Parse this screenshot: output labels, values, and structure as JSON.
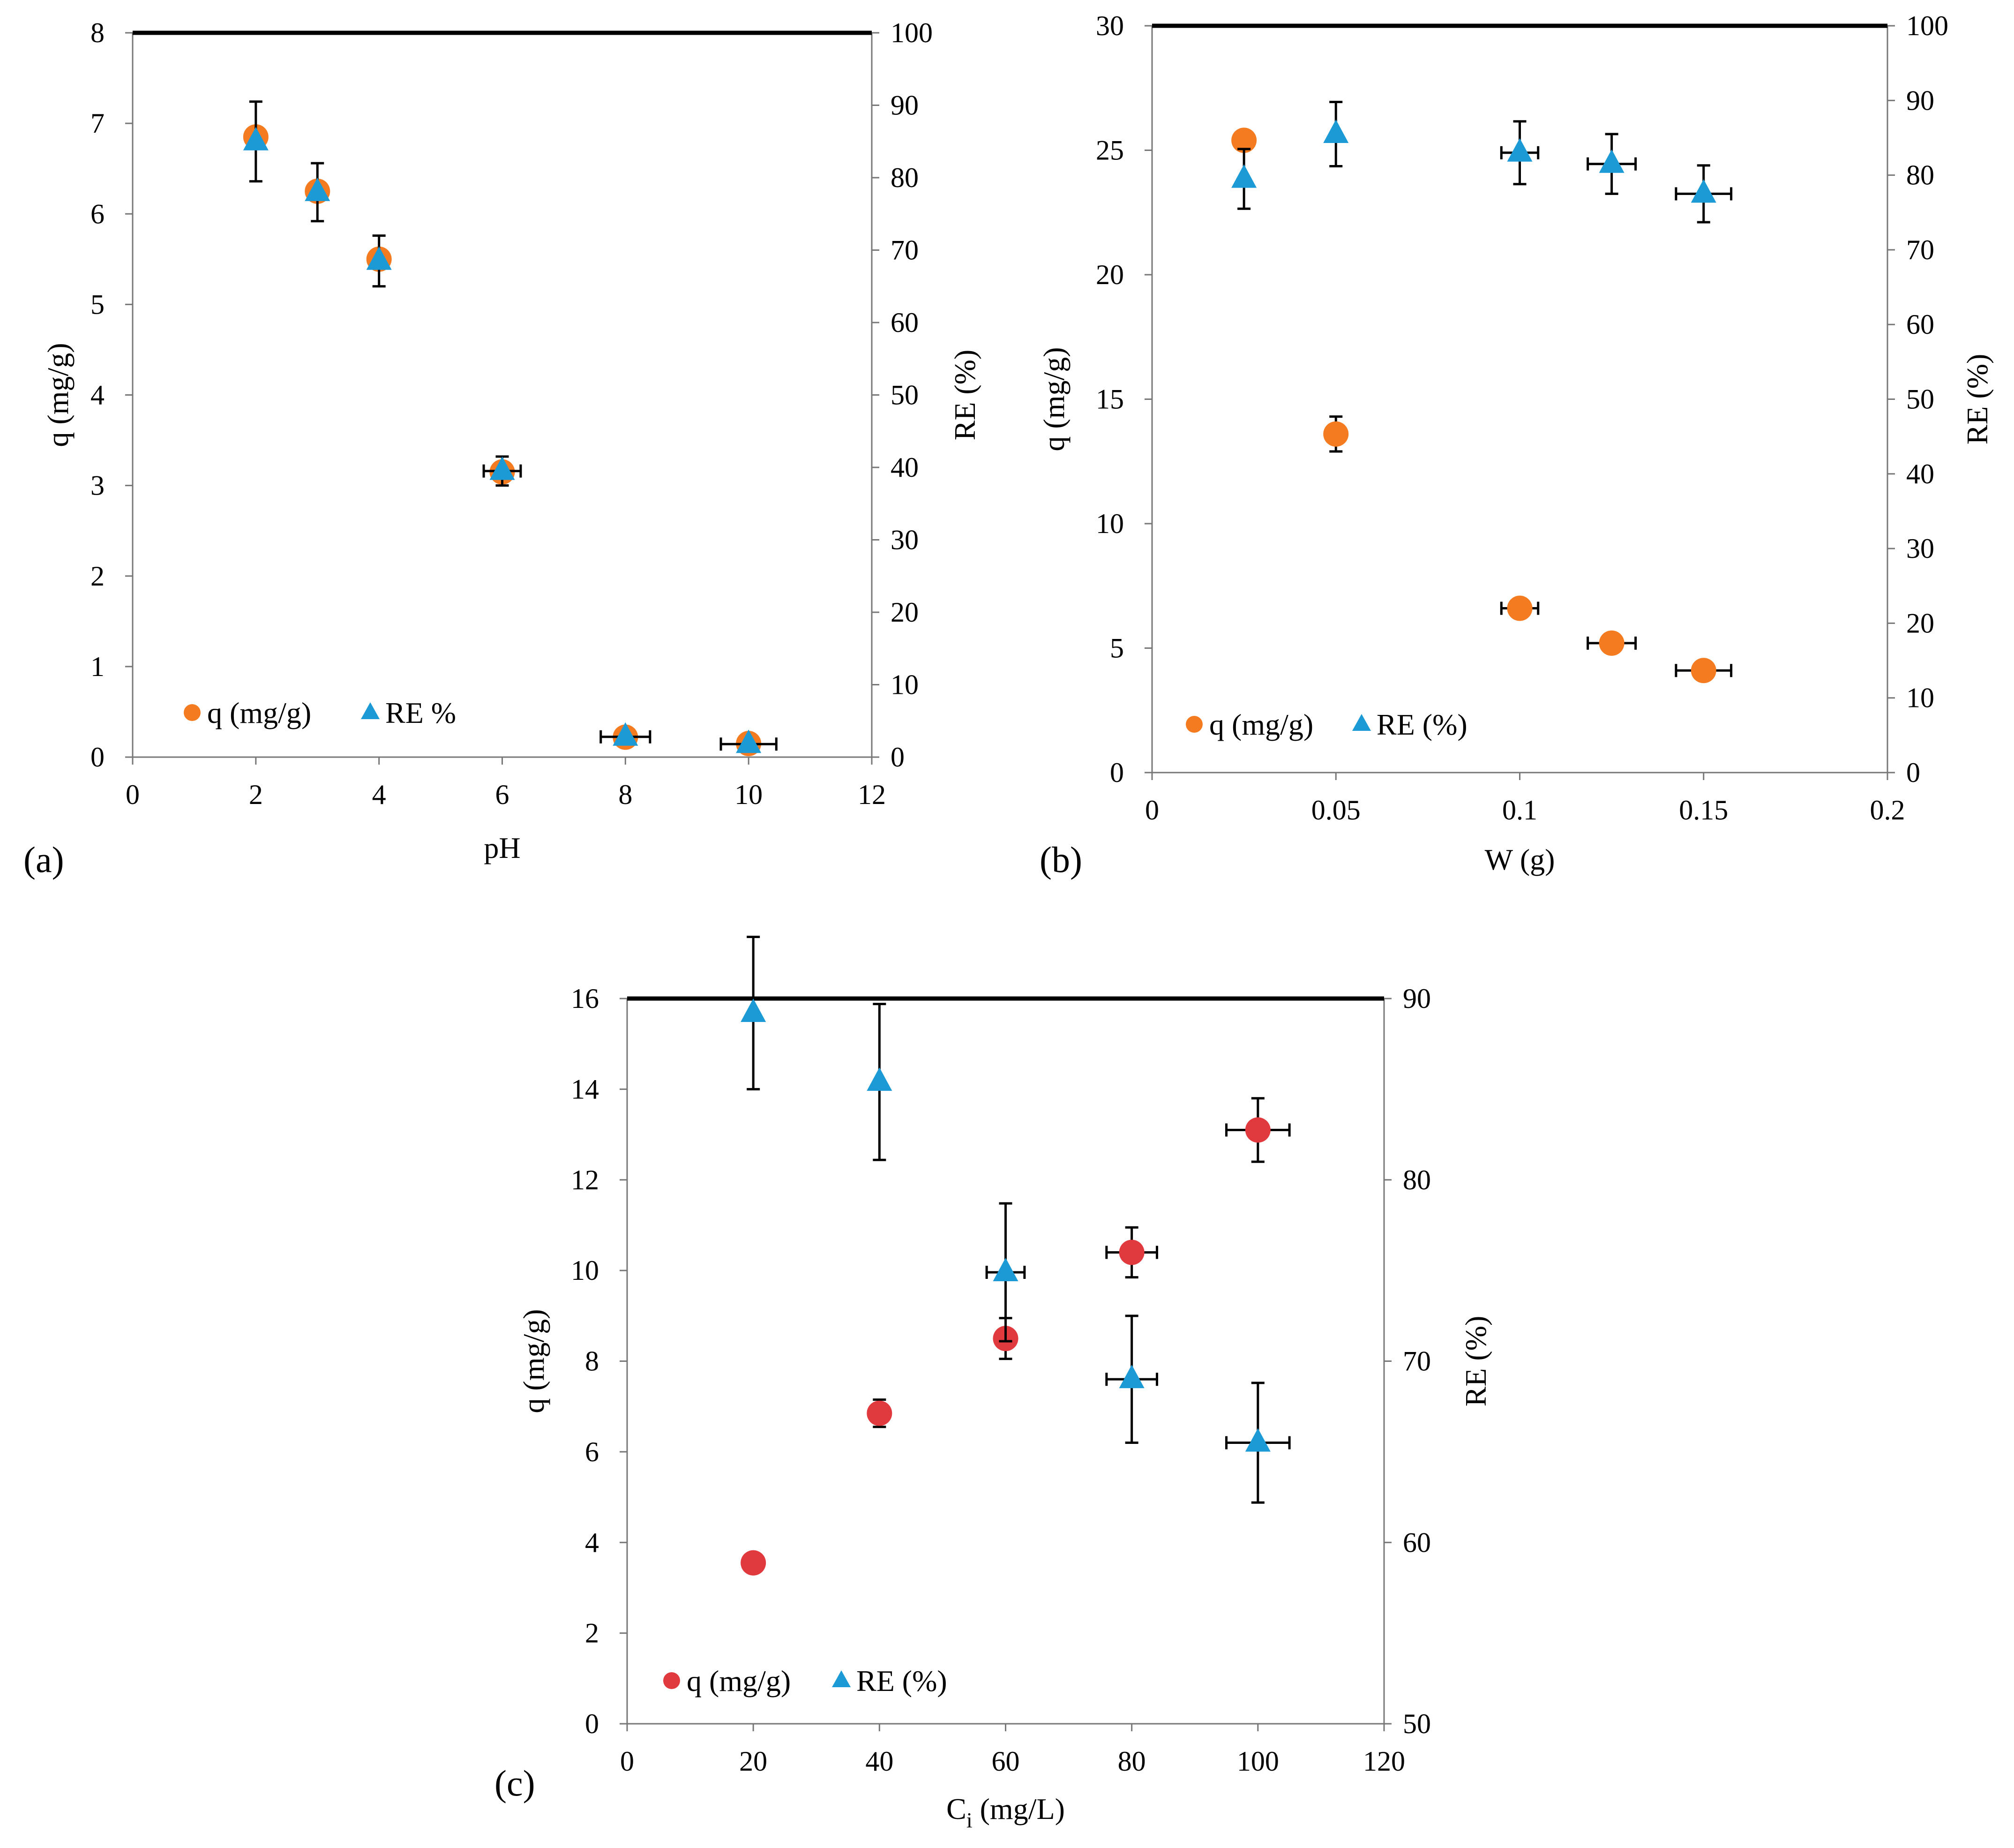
{
  "figure": {
    "panels": [
      "(a)",
      "(b)",
      "(c)"
    ]
  },
  "colors": {
    "orange": "#f47b20",
    "red": "#e0393e",
    "blue": "#1b9ad6"
  },
  "chart_data": [
    {
      "type": "scatter",
      "label": "(a)",
      "title": "",
      "xlabel": "pH",
      "ylabel": "q (mg/g)",
      "y2label": "RE (%)",
      "xlim": [
        0,
        12
      ],
      "xticks": [
        0,
        2,
        4,
        6,
        8,
        10,
        12
      ],
      "ylim": [
        0,
        8
      ],
      "yticks": [
        0,
        1,
        2,
        3,
        4,
        5,
        6,
        7,
        8
      ],
      "y2lim": [
        0,
        100
      ],
      "y2ticks": [
        0,
        10,
        20,
        30,
        40,
        50,
        60,
        70,
        80,
        90,
        100
      ],
      "legend_position": "bottom-left",
      "series": [
        {
          "name": "q (mg/g)",
          "axis": "left",
          "marker": "circle",
          "color": "#f47b20",
          "points": [
            {
              "x": 2,
              "y": 6.85
            },
            {
              "x": 3,
              "y": 6.25
            },
            {
              "x": 4,
              "y": 5.5
            },
            {
              "x": 6,
              "y": 3.15
            },
            {
              "x": 8,
              "y": 0.22
            },
            {
              "x": 10,
              "y": 0.15
            }
          ]
        },
        {
          "name": "RE %",
          "axis": "right",
          "marker": "triangle",
          "color": "#1b9ad6",
          "points": [
            {
              "x": 2,
              "y": 85,
              "yerr": 5.5
            },
            {
              "x": 3,
              "y": 78,
              "yerr": 4.0
            },
            {
              "x": 4,
              "y": 68.5,
              "yerr": 3.5
            },
            {
              "x": 6,
              "y": 39.5,
              "yerr": 2.0,
              "xerr": 0.3
            },
            {
              "x": 8,
              "y": 2.8,
              "xerr": 0.4
            },
            {
              "x": 10,
              "y": 1.8,
              "xerr": 0.45
            }
          ]
        }
      ]
    },
    {
      "type": "scatter",
      "label": "(b)",
      "title": "",
      "xlabel": "W (g)",
      "ylabel": "q (mg/g)",
      "y2label": "RE (%)",
      "xlim": [
        0,
        0.2
      ],
      "xticks": [
        0,
        0.05,
        0.1,
        0.15,
        0.2
      ],
      "ylim": [
        0,
        30
      ],
      "yticks": [
        0,
        5,
        10,
        15,
        20,
        25,
        30
      ],
      "y2lim": [
        0,
        100
      ],
      "y2ticks": [
        0,
        10,
        20,
        30,
        40,
        50,
        60,
        70,
        80,
        90,
        100
      ],
      "legend_position": "bottom-left",
      "series": [
        {
          "name": "q (mg/g)",
          "axis": "left",
          "marker": "circle",
          "color": "#f47b20",
          "points": [
            {
              "x": 0.025,
              "y": 25.4
            },
            {
              "x": 0.05,
              "y": 13.6,
              "yerr": 0.7
            },
            {
              "x": 0.1,
              "y": 6.6,
              "xerr": 0.005
            },
            {
              "x": 0.125,
              "y": 5.2,
              "xerr": 0.0065
            },
            {
              "x": 0.15,
              "y": 4.1,
              "xerr": 0.0075
            }
          ]
        },
        {
          "name": "RE (%)",
          "axis": "right",
          "marker": "triangle",
          "color": "#1b9ad6",
          "points": [
            {
              "x": 0.025,
              "y": 79.5,
              "yerr": 4.0
            },
            {
              "x": 0.05,
              "y": 85.5,
              "yerr": 4.3
            },
            {
              "x": 0.1,
              "y": 83,
              "yerr": 4.2,
              "xerr": 0.005
            },
            {
              "x": 0.125,
              "y": 81.5,
              "yerr": 4.0,
              "xerr": 0.0065
            },
            {
              "x": 0.15,
              "y": 77.5,
              "yerr": 3.8,
              "xerr": 0.0075
            }
          ]
        }
      ]
    },
    {
      "type": "scatter",
      "label": "(c)",
      "title": "",
      "xlabel": "Ci (mg/L)",
      "xlabel_base": "C",
      "xlabel_sub": "i",
      "xlabel_rest": " (mg/L)",
      "ylabel": "q (mg/g)",
      "y2label": "RE (%)",
      "xlim": [
        0,
        120
      ],
      "xticks": [
        0,
        20,
        40,
        60,
        80,
        100,
        120
      ],
      "ylim": [
        0,
        16
      ],
      "yticks": [
        0,
        2,
        4,
        6,
        8,
        10,
        12,
        14,
        16
      ],
      "y2lim": [
        50,
        90
      ],
      "y2ticks": [
        50,
        60,
        70,
        80,
        90
      ],
      "legend_position": "bottom-left",
      "series": [
        {
          "name": "q (mg/g)",
          "axis": "left",
          "marker": "circle",
          "color": "#e0393e",
          "points": [
            {
              "x": 20,
              "y": 3.55
            },
            {
              "x": 40,
              "y": 6.85,
              "yerr": 0.3
            },
            {
              "x": 60,
              "y": 8.5,
              "yerr": 0.45
            },
            {
              "x": 80,
              "y": 10.4,
              "yerr": 0.55,
              "xerr": 4
            },
            {
              "x": 100,
              "y": 13.1,
              "yerr": 0.7,
              "xerr": 5
            }
          ]
        },
        {
          "name": "RE (%)",
          "axis": "right",
          "marker": "triangle",
          "color": "#1b9ad6",
          "points": [
            {
              "x": 20,
              "y": 89.2,
              "yerr": 4.2
            },
            {
              "x": 40,
              "y": 85.4,
              "yerr": 4.3
            },
            {
              "x": 60,
              "y": 74.9,
              "yerr": 3.8,
              "xerr": 3
            },
            {
              "x": 80,
              "y": 69,
              "yerr": 3.5,
              "xerr": 4
            },
            {
              "x": 100,
              "y": 65.5,
              "yerr": 3.3,
              "xerr": 5
            }
          ]
        }
      ]
    }
  ]
}
